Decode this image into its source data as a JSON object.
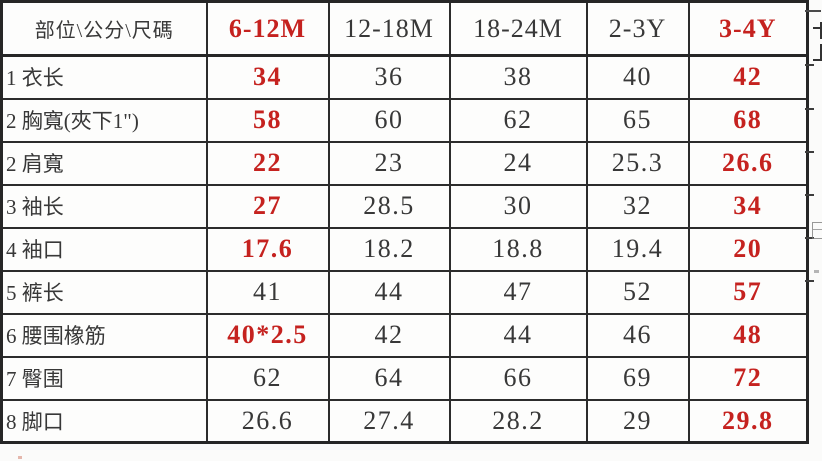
{
  "colors": {
    "accent_red": "#c5221f",
    "text_black": "#383838",
    "grid_line": "#2c2c2c",
    "background": "#fbfbfa"
  },
  "table": {
    "corner_header": "部位\\公分\\尺碼",
    "size_headers": [
      {
        "text": "6-12M",
        "red": true
      },
      {
        "text": "12-18M",
        "red": false
      },
      {
        "text": "18-24M",
        "red": false
      },
      {
        "text": "2-3Y",
        "red": false
      },
      {
        "text": "3-4Y",
        "red": true
      }
    ],
    "rows": [
      {
        "label": "1 衣长",
        "values": [
          {
            "text": "34",
            "red": true
          },
          {
            "text": "36",
            "red": false
          },
          {
            "text": "38",
            "red": false
          },
          {
            "text": "40",
            "red": false
          },
          {
            "text": "42",
            "red": true
          }
        ]
      },
      {
        "label": "2 胸寬(夾下1\")",
        "values": [
          {
            "text": "58",
            "red": true
          },
          {
            "text": "60",
            "red": false
          },
          {
            "text": "62",
            "red": false
          },
          {
            "text": "65",
            "red": false
          },
          {
            "text": "68",
            "red": true
          }
        ]
      },
      {
        "label": "2 肩寬",
        "values": [
          {
            "text": "22",
            "red": true
          },
          {
            "text": "23",
            "red": false
          },
          {
            "text": "24",
            "red": false
          },
          {
            "text": "25.3",
            "red": false
          },
          {
            "text": "26.6",
            "red": true
          }
        ]
      },
      {
        "label": "3 袖长",
        "values": [
          {
            "text": "27",
            "red": true
          },
          {
            "text": "28.5",
            "red": false
          },
          {
            "text": "30",
            "red": false
          },
          {
            "text": "32",
            "red": false
          },
          {
            "text": "34",
            "red": true
          }
        ]
      },
      {
        "label": "4 袖口",
        "values": [
          {
            "text": "17.6",
            "red": true
          },
          {
            "text": "18.2",
            "red": false
          },
          {
            "text": "18.8",
            "red": false
          },
          {
            "text": "19.4",
            "red": false
          },
          {
            "text": "20",
            "red": true
          }
        ]
      },
      {
        "label": "5 裤长",
        "values": [
          {
            "text": "41",
            "red": false
          },
          {
            "text": "44",
            "red": false
          },
          {
            "text": "47",
            "red": false
          },
          {
            "text": "52",
            "red": false
          },
          {
            "text": "57",
            "red": true
          }
        ]
      },
      {
        "label": "6 腰围橡筋",
        "values": [
          {
            "text": "40*2.5",
            "red": true
          },
          {
            "text": "42",
            "red": false
          },
          {
            "text": "44",
            "red": false
          },
          {
            "text": "46",
            "red": false
          },
          {
            "text": "48",
            "red": true
          }
        ]
      },
      {
        "label": "7 臀围",
        "values": [
          {
            "text": "62",
            "red": false
          },
          {
            "text": "64",
            "red": false
          },
          {
            "text": "66",
            "red": false
          },
          {
            "text": "69",
            "red": false
          },
          {
            "text": "72",
            "red": true
          }
        ]
      },
      {
        "label": "8 脚口",
        "values": [
          {
            "text": "26.6",
            "red": false
          },
          {
            "text": "27.4",
            "red": false
          },
          {
            "text": "28.2",
            "red": false
          },
          {
            "text": "29",
            "red": false
          },
          {
            "text": "29.8",
            "red": true
          }
        ]
      }
    ]
  }
}
